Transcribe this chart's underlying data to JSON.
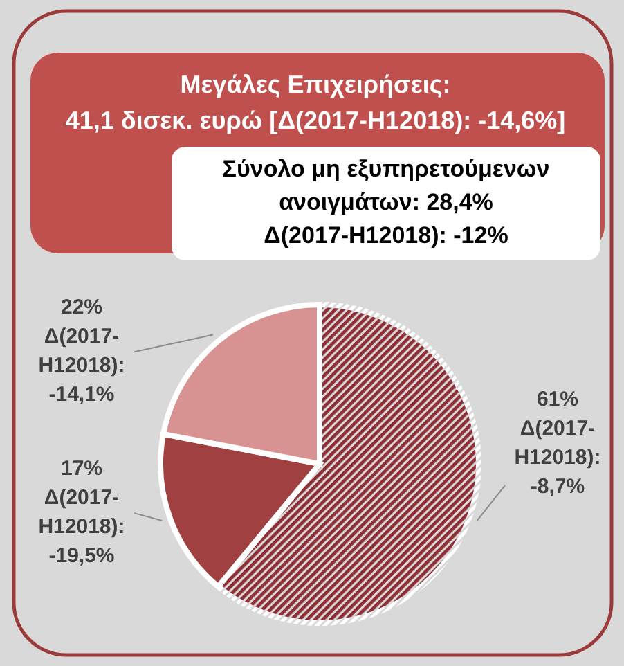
{
  "chart_data": {
    "type": "pie",
    "title": "Μεγάλες Επιχειρήσεις:",
    "subtitle": "41,1 δισεκ. ευρώ [Δ(2017-H12018): -14,6%]",
    "annotations": [
      "Σύνολο μη εξυπηρετούμενων\nανοιγμάτων: 28,4%\nΔ(2017-H12018):  -12%"
    ],
    "categories": [
      null,
      null,
      null
    ],
    "values": [
      61,
      17,
      22
    ],
    "colors": [
      "#8f2f35",
      "#a04040",
      "#d99292"
    ],
    "value_labels": [
      "61%\nΔ(2017-\nH12018):\n-8,7%",
      "17%\nΔ(2017-\nH12018):\n-19,5%",
      "22%\nΔ(2017-\nH12018):\n-14,1%"
    ]
  }
}
